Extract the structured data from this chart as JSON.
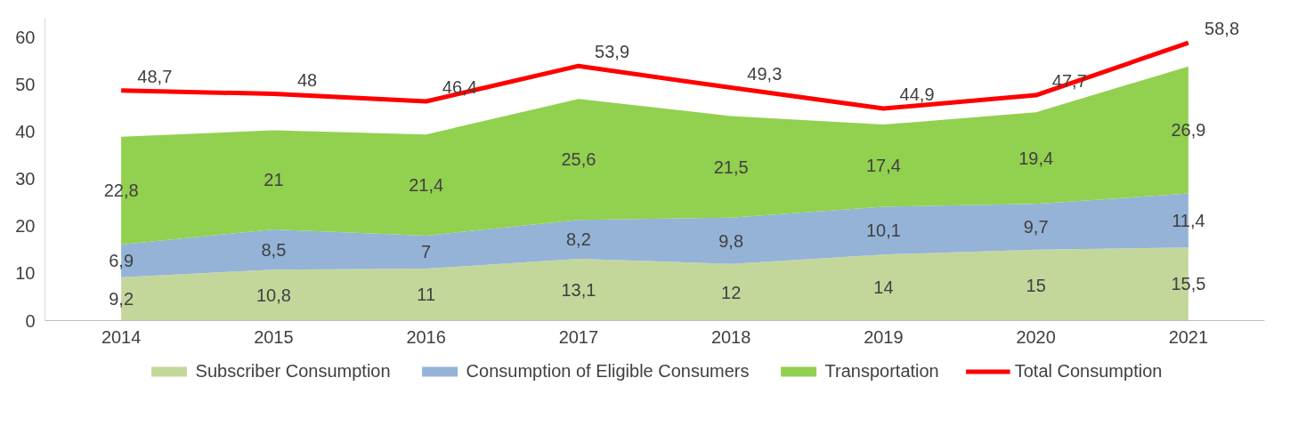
{
  "chart_data": {
    "type": "area",
    "stacked": true,
    "categories": [
      "2014",
      "2015",
      "2016",
      "2017",
      "2018",
      "2019",
      "2020",
      "2021"
    ],
    "ylim": [
      0,
      64
    ],
    "yticks": [
      0,
      10,
      20,
      30,
      40,
      50,
      60
    ],
    "grid": false,
    "legend": "bottom",
    "series": [
      {
        "name": "Subscriber Consumption",
        "color": "#c4d79b",
        "values": [
          9.2,
          10.8,
          11,
          13.1,
          12,
          14,
          15,
          15.5
        ],
        "value_labels": [
          "9,2",
          "10,8",
          "11",
          "13,1",
          "12",
          "14",
          "15",
          "15,5"
        ]
      },
      {
        "name": "Consumption of Eligible Consumers",
        "color": "#95b3d7",
        "values": [
          6.9,
          8.5,
          7,
          8.2,
          9.8,
          10.1,
          9.7,
          11.4
        ],
        "value_labels": [
          "6,9",
          "8,5",
          "7",
          "8,2",
          "9,8",
          "10,1",
          "9,7",
          "11,4"
        ]
      },
      {
        "name": "Transportation",
        "color": "#92d050",
        "values": [
          22.8,
          21,
          21.4,
          25.6,
          21.5,
          17.4,
          19.4,
          26.9
        ],
        "value_labels": [
          "22,8",
          "21",
          "21,4",
          "25,6",
          "21,5",
          "17,4",
          "19,4",
          "26,9"
        ]
      },
      {
        "name": "Total Consumption",
        "type": "line",
        "color": "#ff0000",
        "values": [
          48.7,
          48,
          46.4,
          53.9,
          49.3,
          44.9,
          47.7,
          58.8
        ],
        "value_labels": [
          "48,7",
          "48",
          "46,4",
          "53,9",
          "49,3",
          "44,9",
          "47,7",
          "58,8"
        ]
      }
    ]
  }
}
